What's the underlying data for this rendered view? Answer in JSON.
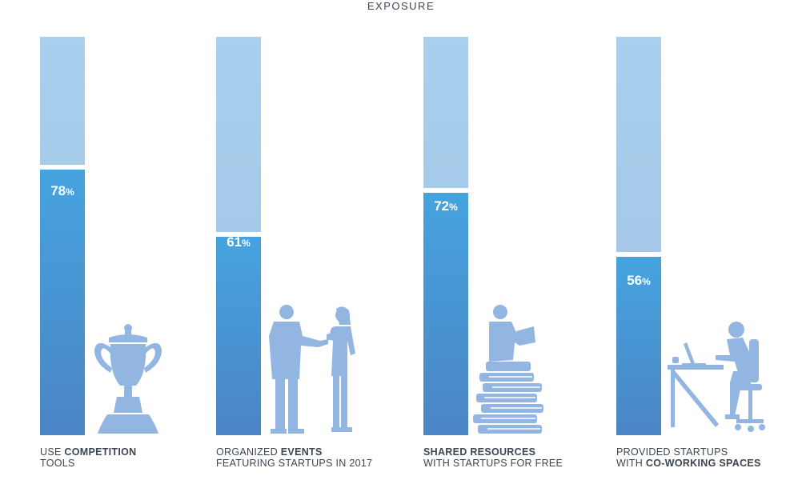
{
  "title": "EXPOSURE",
  "chart_data": {
    "type": "bar",
    "title": "EXPOSURE",
    "ylim": [
      0,
      100
    ],
    "categories": [
      "USE COMPETITION TOOLS",
      "ORGANIZED EVENTS FEATURING STARTUPS IN 2017",
      "SHARED RESOURCES WITH STARTUPS FOR FREE",
      "PROVIDED STARTUPS WITH CO-WORKING SPACES"
    ],
    "values": [
      78,
      61,
      72,
      56
    ],
    "value_labels": [
      "78",
      "61",
      "72",
      "56"
    ],
    "value_suffix": "%",
    "colors": {
      "fill": "#4a90d4",
      "track": "#a6c8e8",
      "illustration": "#93b5e1",
      "text": "#3d4550"
    }
  },
  "labels": [
    {
      "line1_plain": "USE ",
      "line1_bold": "COMPETITION",
      "line2_plain": "TOOLS",
      "line2_bold": ""
    },
    {
      "line1_plain": "ORGANIZED ",
      "line1_bold": "EVENTS",
      "line2_plain": "FEATURING STARTUPS IN 2017",
      "line2_bold": ""
    },
    {
      "line1_plain": "",
      "line1_bold": "SHARED RESOURCES",
      "line2_plain": "WITH STARTUPS FOR FREE",
      "line2_bold": ""
    },
    {
      "line1_plain": "PROVIDED STARTUPS",
      "line1_bold": "",
      "line2_plain": "WITH ",
      "line2_bold": "CO-WORKING SPACES"
    }
  ],
  "illustrations": [
    "trophy-icon",
    "business-people-icon",
    "reader-on-books-icon",
    "person-at-desk-icon"
  ]
}
